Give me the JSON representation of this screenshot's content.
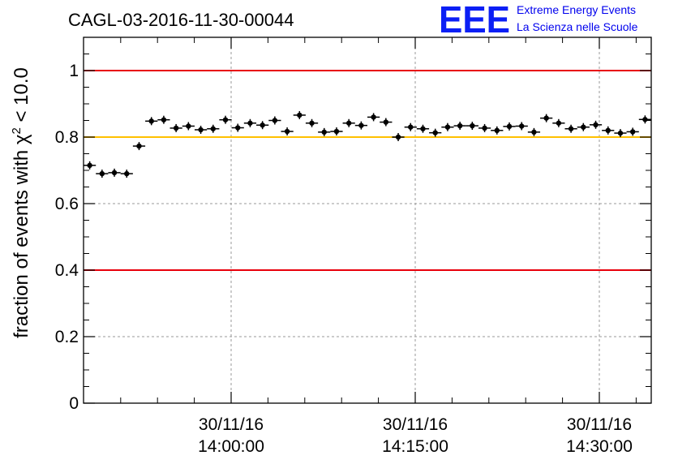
{
  "chart_data": {
    "type": "scatter",
    "title": "CAGL-03-2016-11-30-00044",
    "ylabel_prefix": "fraction of events with ",
    "ylabel_chi": "χ",
    "ylabel_sup": "2",
    "ylabel_suffix": " < 10.0",
    "xlabel": "",
    "ylim": [
      0,
      1.1
    ],
    "y_ticks": [
      "0",
      "0.2",
      "0.4",
      "0.6",
      "0.8",
      "1"
    ],
    "x_ticks": [
      {
        "date": "30/11/16",
        "time": "14:00:00"
      },
      {
        "date": "30/11/16",
        "time": "14:15:00"
      },
      {
        "date": "30/11/16",
        "time": "14:30:00"
      }
    ],
    "reference_lines": [
      {
        "y": 1.0,
        "color": "#e8000b"
      },
      {
        "y": 0.8,
        "color": "#ffc000"
      },
      {
        "y": 0.4,
        "color": "#e8000b"
      }
    ],
    "grid": true,
    "marker_color": "#000000",
    "series": [
      {
        "values": [
          0.715,
          0.69,
          0.693,
          0.69,
          0.773,
          0.848,
          0.852,
          0.827,
          0.833,
          0.822,
          0.825,
          0.852,
          0.828,
          0.842,
          0.836,
          0.85,
          0.817,
          0.866,
          0.842,
          0.815,
          0.817,
          0.842,
          0.835,
          0.86,
          0.845,
          0.8,
          0.83,
          0.825,
          0.813,
          0.83,
          0.834,
          0.834,
          0.827,
          0.82,
          0.832,
          0.833,
          0.815,
          0.857,
          0.842,
          0.825,
          0.83,
          0.837,
          0.82,
          0.812,
          0.816,
          0.853
        ]
      }
    ]
  },
  "logo": {
    "mark": "EEE",
    "line1": "Extreme Energy Events",
    "line2": "La Scienza nelle Scuole"
  }
}
